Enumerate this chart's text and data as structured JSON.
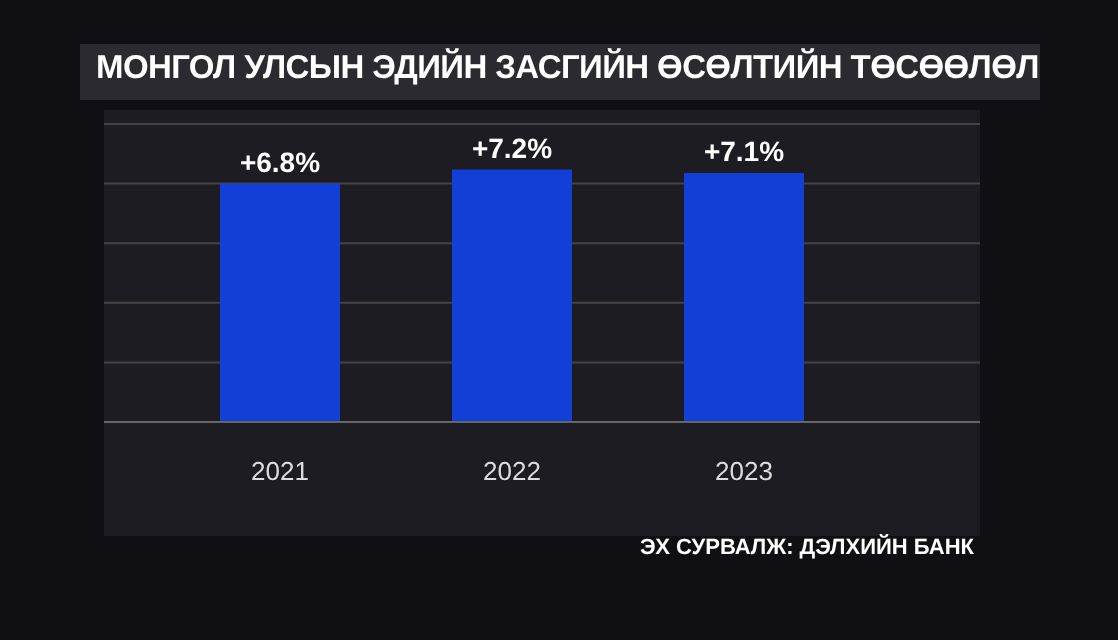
{
  "chart_data": {
    "type": "bar",
    "title": "МОНГОЛ УЛСЫН ЭДИЙН ЗАСГИЙН ӨСӨЛТИЙН ТӨСӨӨЛӨЛ",
    "categories": [
      "2021",
      "2022",
      "2023"
    ],
    "values": [
      6.8,
      7.2,
      7.1
    ],
    "value_labels": [
      "+6.8%",
      "+7.2%",
      "+7.1%"
    ],
    "color": "#1240d6",
    "ylim": [
      0,
      8.5
    ],
    "yticks": [
      {
        "value": 0,
        "label": null
      },
      {
        "value": 1.7,
        "label": null
      },
      {
        "value": 3.4,
        "label": null
      },
      {
        "value": 5.1,
        "label": null
      },
      {
        "value": 6.8,
        "label": null
      },
      {
        "value": 8.5,
        "label": null
      }
    ],
    "grid": "y",
    "tick_labels": "x",
    "annotations": [
      "ЭХ СУРВАЛЖ: ДЭЛХИЙН БАНК"
    ]
  }
}
